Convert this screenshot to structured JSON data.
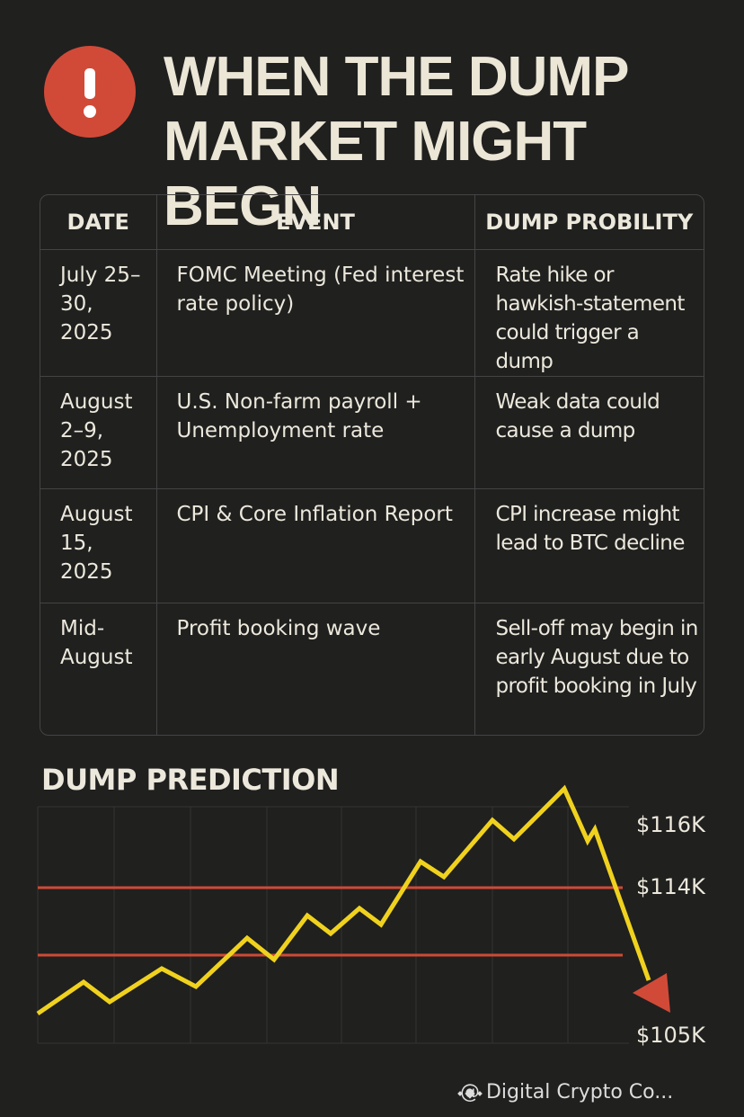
{
  "header": {
    "title_lines": [
      "WHEN THE DUMP",
      "MARKET MIGHT BEGN"
    ]
  },
  "table": {
    "columns": [
      "DATE",
      "EVENT",
      "DUMP PROBILITY"
    ],
    "rows": [
      [
        "July 25–30, 2025",
        "FOMC Meeting (Fed interest rate policy)",
        "Rate hike or hawkish-statement could trigger a dump"
      ],
      [
        "August 2–9, 2025",
        "U.S. Non-farm payroll + Unemployment rate",
        "Weak data could cause a dump"
      ],
      [
        "August 15, 2025",
        "CPI & Core Inflation Report",
        "CPI increase might lead to BTC decline"
      ],
      [
        "Mid-August",
        "Profit booking wave",
        "Sell-off may begin in early August due to profit booking in July"
      ]
    ]
  },
  "prediction": {
    "title": "DUMP PREDICTION",
    "price_labels": [
      "$116K",
      "$114K",
      "$105K"
    ]
  },
  "footer": {
    "watermark": "@ Digital Crypto Co..."
  }
}
